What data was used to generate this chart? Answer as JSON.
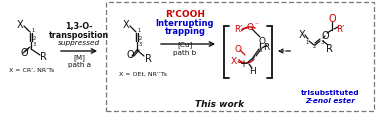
{
  "fig_width": 3.78,
  "fig_height": 1.15,
  "dpi": 100,
  "bg_color": "#ffffff",
  "box_color": "#777777",
  "black": "#111111",
  "red": "#cc0000",
  "blue": "#0000cc",
  "x_eq1": "X = CR’, NR’Ts",
  "x_eq2": "X = OEt, NR’’Ts",
  "this_work": "This work"
}
